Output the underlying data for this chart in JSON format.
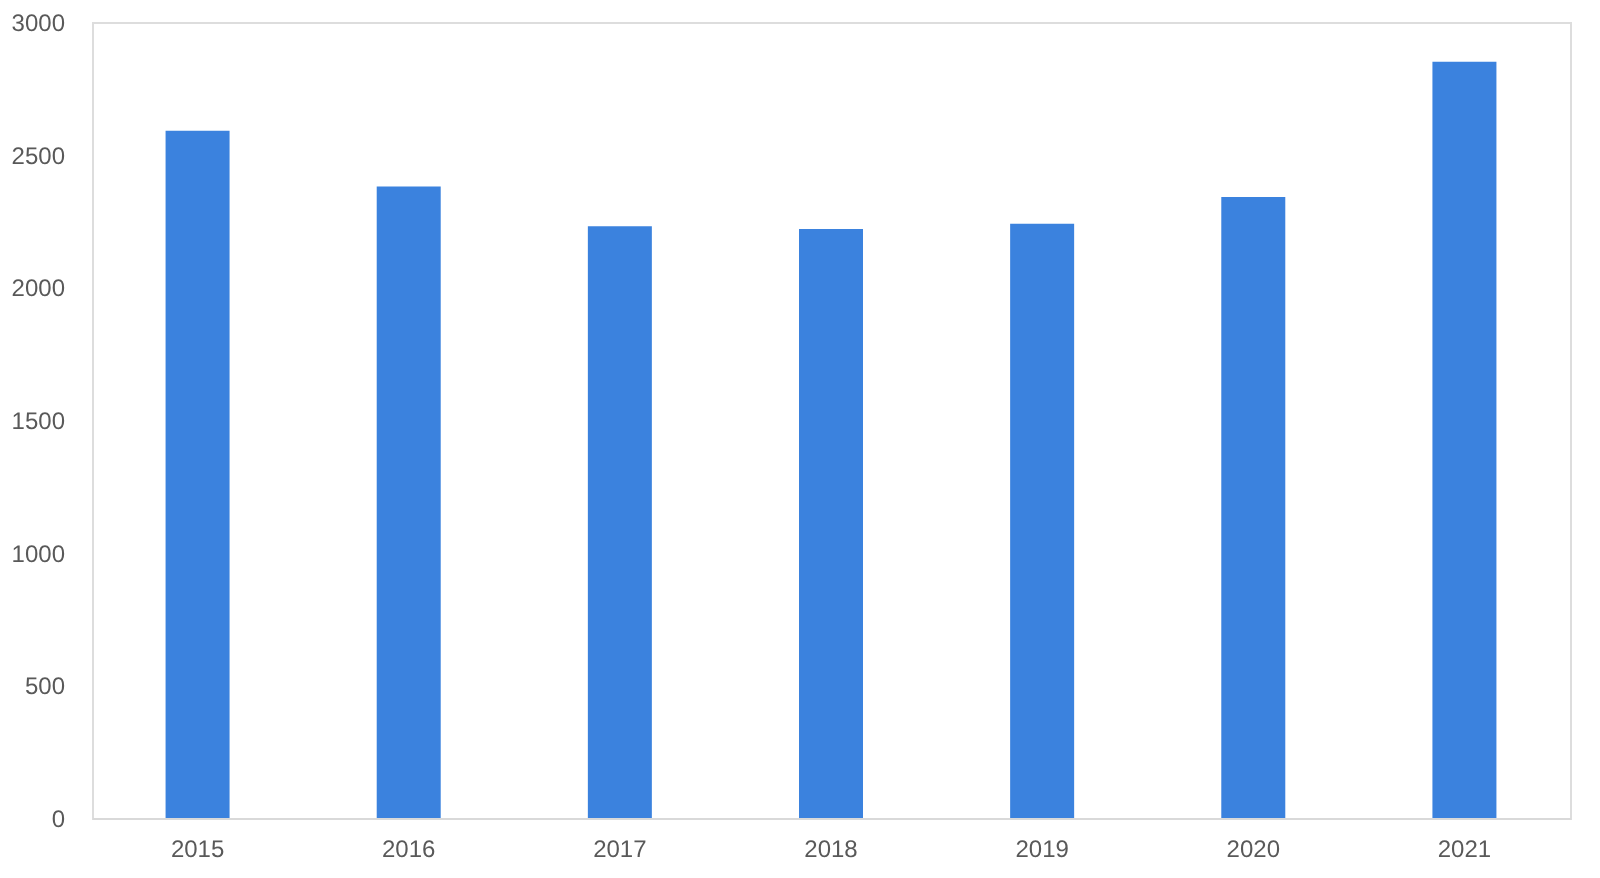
{
  "chart_data": {
    "type": "bar",
    "categories": [
      "2015",
      "2016",
      "2017",
      "2018",
      "2019",
      "2020",
      "2021"
    ],
    "values": [
      2590,
      2380,
      2230,
      2220,
      2240,
      2340,
      2850
    ],
    "color": "#3b82de",
    "ylim": [
      0,
      3000
    ],
    "yticks": [
      0,
      500,
      1000,
      1500,
      2000,
      2500,
      3000
    ],
    "grid": false
  }
}
